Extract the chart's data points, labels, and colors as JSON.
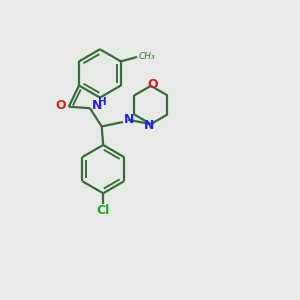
{
  "bg_color": "#e8eae8",
  "bond_color": "#3a6b3a",
  "N_color": "#2222dd",
  "O_color": "#cc2222",
  "Cl_color": "#22aa22",
  "line_width": 1.6,
  "figsize": [
    3.0,
    3.0
  ],
  "dpi": 100,
  "xlim": [
    0,
    10
  ],
  "ylim": [
    0,
    10
  ]
}
